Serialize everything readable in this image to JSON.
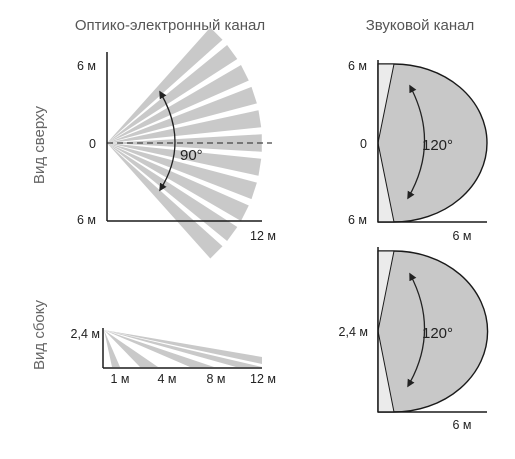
{
  "headers": {
    "optical": "Оптико-электронный канал",
    "sound": "Звуковой канал"
  },
  "row_labels": {
    "top": "Вид сверху",
    "side": "Вид сбоку"
  },
  "optical_top": {
    "y_top": "6 м",
    "y_mid": "0",
    "y_bottom": "6 м",
    "x_max": "12 м",
    "angle": "90°"
  },
  "sound_top": {
    "y_top": "6 м",
    "y_mid": "0",
    "y_bottom": "6 м",
    "x_max": "6 м",
    "angle": "120°"
  },
  "optical_side": {
    "y": "2,4 м",
    "x_ticks": [
      "1 м",
      "4 м",
      "8 м",
      "12 м"
    ]
  },
  "sound_side": {
    "y": "2,4 м",
    "x_max": "6 м",
    "angle": "120°"
  },
  "colors": {
    "beam": "#c9c9c9",
    "zone": "#c8c8c8",
    "dead_zone": "#ebebeb",
    "axis": "#1a1a1a"
  }
}
